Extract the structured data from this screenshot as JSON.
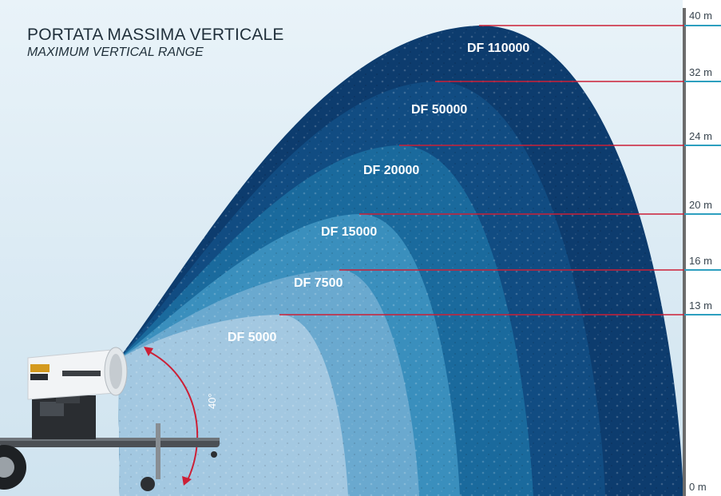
{
  "header": {
    "title": "PORTATA MASSIMA VERTICALE",
    "subtitle": "MAXIMUM VERTICAL RANGE"
  },
  "angle_label": "40°",
  "colors": {
    "df110000": "#0d3c6e",
    "df50000": "#114c82",
    "df20000": "#1a6a9d",
    "df15000": "#3a8fbd",
    "df7500": "#6aa9cf",
    "df5000": "#a3c8e1",
    "marker": "#cc1f36",
    "tick": "#2d9fbf",
    "axis": "#6b6b6b",
    "background": "#d7e8f2"
  },
  "height_labels": [
    "40 m",
    "32 m",
    "24 m",
    "20 m",
    "16 m",
    "13 m",
    "0 m"
  ],
  "models": [
    {
      "name": "DF 110000",
      "max_height": "40 m"
    },
    {
      "name": "DF 50000",
      "max_height": "32 m"
    },
    {
      "name": "DF 20000",
      "max_height": "24 m"
    },
    {
      "name": "DF 15000",
      "max_height": "20 m"
    },
    {
      "name": "DF 7500",
      "max_height": "16 m"
    },
    {
      "name": "DF 5000",
      "max_height": "13 m"
    }
  ]
}
